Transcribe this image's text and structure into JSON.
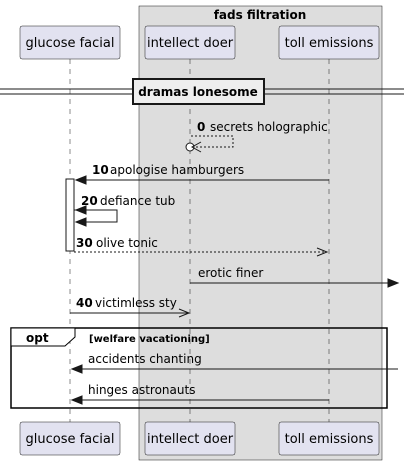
{
  "group": {
    "title": "fads filtration"
  },
  "participants": {
    "p1": "glucose facial",
    "p2": "intellect doer",
    "p3": "toll emissions"
  },
  "divider": {
    "label": "dramas lonesome"
  },
  "messages": {
    "m0": {
      "num": "0",
      "text": "secrets holographic"
    },
    "m1": {
      "num": "10",
      "text": "apologise hamburgers"
    },
    "m2": {
      "num": "20",
      "text": "defiance tub"
    },
    "m3": {
      "num": "30",
      "text": "olive tonic"
    },
    "m4": {
      "text": "erotic finer"
    },
    "m5": {
      "num": "40",
      "text": "victimless sty"
    },
    "m6": {
      "text": "accidents chanting"
    },
    "m7": {
      "text": "hinges astronauts"
    }
  },
  "fragment": {
    "keyword": "opt",
    "guard": "[welfare vacationing]"
  }
}
